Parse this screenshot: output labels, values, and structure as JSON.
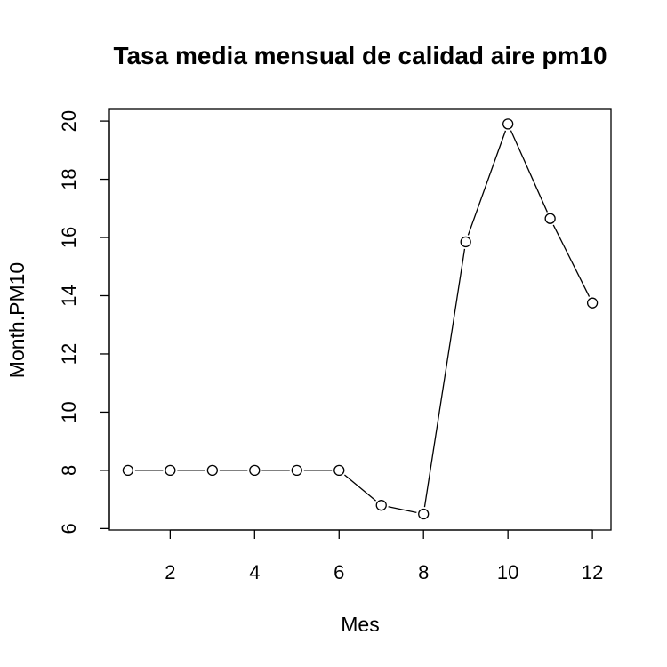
{
  "chart_data": {
    "type": "line",
    "title": "Tasa media mensual de calidad aire pm10",
    "xlabel": "Mes",
    "ylabel": "Month.PM10",
    "x": [
      1,
      2,
      3,
      4,
      5,
      6,
      7,
      8,
      9,
      10,
      11,
      12
    ],
    "y": [
      8.0,
      8.0,
      8.0,
      8.0,
      8.0,
      8.0,
      6.8,
      6.5,
      15.85,
      19.9,
      16.65,
      13.75
    ],
    "xlim": [
      0.56,
      12.44
    ],
    "ylim": [
      5.95,
      20.4
    ],
    "xticks": [
      2,
      4,
      6,
      8,
      10,
      12
    ],
    "yticks": [
      6,
      8,
      10,
      12,
      14,
      16,
      18,
      20
    ],
    "marker": "open-circle",
    "line_color": "#000000",
    "grid": false,
    "legend": "none"
  }
}
